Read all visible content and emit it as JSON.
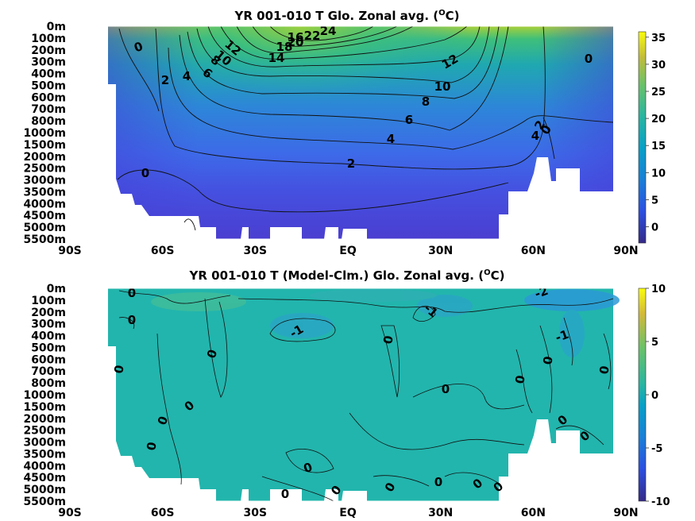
{
  "chart_data": [
    {
      "type": "heatmap",
      "title": "YR 001-010 T Glo. Zonal avg. (",
      "title_sup": "O",
      "title_end": "C)",
      "x_tick_labels": [
        "90S",
        "60S",
        "30S",
        "EQ",
        "30N",
        "60N",
        "90N"
      ],
      "x_tick_values": [
        -90,
        -60,
        -30,
        0,
        30,
        60,
        90
      ],
      "xlim": [
        -90,
        90
      ],
      "y_tick_labels": [
        "0m",
        "100m",
        "200m",
        "300m",
        "400m",
        "500m",
        "600m",
        "700m",
        "800m",
        "1000m",
        "1500m",
        "2000m",
        "2500m",
        "3000m",
        "3500m",
        "4000m",
        "4500m",
        "5000m",
        "5500m"
      ],
      "y_axis_reversed": true,
      "colorbar": {
        "ticks": [
          "35",
          "30",
          "25",
          "20",
          "15",
          "10",
          "5",
          "0"
        ],
        "range": [
          -3,
          36
        ],
        "colormap": "parula"
      },
      "contour_labels": [
        "24",
        "22",
        "20",
        "18",
        "16",
        "14",
        "12",
        "10",
        "8",
        "6",
        "4",
        "2",
        "0"
      ],
      "color_stops": [
        {
          "depth": "0m",
          "color": "#a8d03a"
        },
        {
          "depth": "100m",
          "color": "#3fbf7a"
        },
        {
          "depth": "200m",
          "color": "#1fa8b0"
        },
        {
          "depth": "500m",
          "color": "#2d86d8"
        },
        {
          "depth": "1000m",
          "color": "#3d6ae8"
        },
        {
          "depth": "2500m",
          "color": "#4550e0"
        },
        {
          "depth": "5500m",
          "color": "#4a3ed0"
        }
      ]
    },
    {
      "type": "heatmap",
      "title": "YR 001-010 T (Model-Clm.) Glo. Zonal avg. (",
      "title_sup": "O",
      "title_end": "C)",
      "x_tick_labels": [
        "90S",
        "60S",
        "30S",
        "EQ",
        "30N",
        "60N",
        "90N"
      ],
      "x_tick_values": [
        -90,
        -60,
        -30,
        0,
        30,
        60,
        90
      ],
      "xlim": [
        -90,
        90
      ],
      "y_tick_labels": [
        "0m",
        "100m",
        "200m",
        "300m",
        "400m",
        "500m",
        "600m",
        "700m",
        "800m",
        "1000m",
        "1500m",
        "2000m",
        "2500m",
        "3000m",
        "3500m",
        "4000m",
        "4500m",
        "5000m",
        "5500m"
      ],
      "y_axis_reversed": true,
      "colorbar": {
        "ticks": [
          "10",
          "5",
          "0",
          "-5",
          "-10"
        ],
        "range": [
          -10,
          10
        ],
        "colormap": "parula"
      },
      "contour_labels": [
        "0",
        "-1",
        "-2"
      ],
      "color_stops": [
        {
          "depth": "0m",
          "color": "#2ab5b0"
        },
        {
          "depth": "5500m",
          "color": "#1fb4ad"
        }
      ]
    }
  ]
}
